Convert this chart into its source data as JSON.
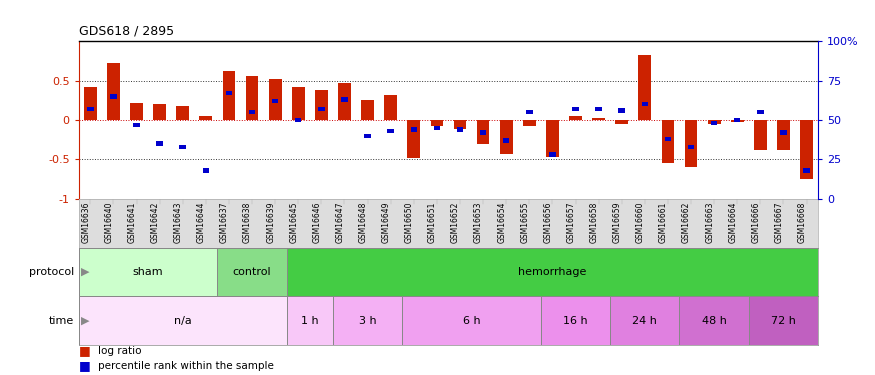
{
  "title": "GDS618 / 2895",
  "samples": [
    "GSM16636",
    "GSM16640",
    "GSM16641",
    "GSM16642",
    "GSM16643",
    "GSM16644",
    "GSM16637",
    "GSM16638",
    "GSM16639",
    "GSM16645",
    "GSM16646",
    "GSM16647",
    "GSM16648",
    "GSM16649",
    "GSM16650",
    "GSM16651",
    "GSM16652",
    "GSM16653",
    "GSM16654",
    "GSM16655",
    "GSM16656",
    "GSM16657",
    "GSM16658",
    "GSM16659",
    "GSM16660",
    "GSM16661",
    "GSM16662",
    "GSM16663",
    "GSM16664",
    "GSM16666",
    "GSM16667",
    "GSM16668"
  ],
  "log_ratio": [
    0.42,
    0.72,
    0.22,
    0.2,
    0.18,
    0.05,
    0.62,
    0.56,
    0.52,
    0.42,
    0.38,
    0.47,
    0.25,
    0.32,
    -0.48,
    -0.07,
    -0.12,
    -0.3,
    -0.43,
    -0.08,
    -0.47,
    0.05,
    0.02,
    -0.05,
    0.82,
    -0.55,
    -0.6,
    -0.05,
    -0.02,
    -0.38,
    -0.38,
    -0.75
  ],
  "percentile": [
    0.57,
    0.65,
    0.47,
    0.35,
    0.33,
    0.18,
    0.67,
    0.55,
    0.62,
    0.5,
    0.57,
    0.63,
    0.4,
    0.43,
    0.44,
    0.45,
    0.44,
    0.42,
    0.37,
    0.55,
    0.28,
    0.57,
    0.57,
    0.56,
    0.6,
    0.38,
    0.33,
    0.48,
    0.5,
    0.55,
    0.42,
    0.18
  ],
  "protocol_groups": [
    {
      "label": "sham",
      "start": 0,
      "end": 6,
      "color": "#ccffcc"
    },
    {
      "label": "control",
      "start": 6,
      "end": 9,
      "color": "#88dd88"
    },
    {
      "label": "hemorrhage",
      "start": 9,
      "end": 32,
      "color": "#44cc44"
    }
  ],
  "time_groups": [
    {
      "label": "n/a",
      "start": 0,
      "end": 9,
      "color": "#fce4fc"
    },
    {
      "label": "1 h",
      "start": 9,
      "end": 11,
      "color": "#f8c8f8"
    },
    {
      "label": "3 h",
      "start": 11,
      "end": 14,
      "color": "#f4b0f4"
    },
    {
      "label": "6 h",
      "start": 14,
      "end": 20,
      "color": "#f0a0f0"
    },
    {
      "label": "16 h",
      "start": 20,
      "end": 23,
      "color": "#ec90ec"
    },
    {
      "label": "24 h",
      "start": 23,
      "end": 26,
      "color": "#e080e0"
    },
    {
      "label": "48 h",
      "start": 26,
      "end": 29,
      "color": "#d070d0"
    },
    {
      "label": "72 h",
      "start": 29,
      "end": 32,
      "color": "#c060c0"
    }
  ],
  "bar_color": "#cc2200",
  "dot_color": "#0000cc",
  "ylim": [
    -1.0,
    1.0
  ],
  "left_yticks": [
    -1.0,
    -0.5,
    0.0,
    0.5
  ],
  "left_ytick_labels": [
    "-1",
    "-0.5",
    "0",
    "0.5"
  ],
  "right_ytick_positions": [
    -1.0,
    -0.5,
    0.0,
    0.5,
    1.0
  ],
  "right_ytick_labels": [
    "0",
    "25",
    "50",
    "75",
    "100%"
  ],
  "hline_y": [
    -0.5,
    0.0,
    0.5
  ],
  "bg_color": "#ffffff",
  "xtick_bg": "#dddddd",
  "title_fontsize": 9,
  "tick_label_fontsize": 5.5,
  "row_label_fontsize": 8,
  "legend_fontsize": 7.5
}
